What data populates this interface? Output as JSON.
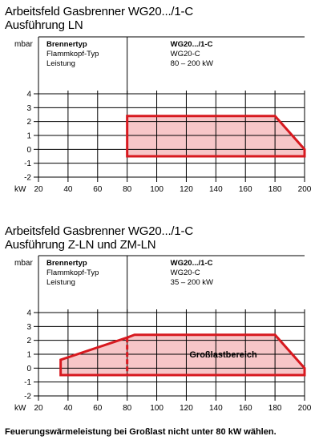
{
  "note": "Feuerungswärmeleistung bei Großlast nicht unter 80 kW wählen.",
  "colors": {
    "border": "#d7191f",
    "fill": "#f7c6c8",
    "grid": "#000000"
  },
  "chart_data": [
    {
      "type": "area",
      "title": "Arbeitsfeld Gasbrenner WG20.../1-C",
      "subtitle": "Ausführung LN",
      "xlabel": "kW",
      "ylabel": "mbar",
      "xlim": [
        20,
        200
      ],
      "ylim": [
        -2,
        4
      ],
      "x_ticks": [
        "20",
        "40",
        "60",
        "80",
        "100",
        "120",
        "140",
        "160",
        "180",
        "200"
      ],
      "y_ticks": [
        "4",
        "3",
        "2",
        "1",
        "0",
        "-1",
        "-2"
      ],
      "grid": true,
      "info": {
        "left": [
          "Brennertyp",
          "Flammkopf-Typ",
          "Leistung"
        ],
        "right": [
          "WG20.../1-C",
          "WG20-C",
          "80 – 200 kW"
        ]
      },
      "field": {
        "points": [
          [
            80,
            2.4
          ],
          [
            180,
            2.4
          ],
          [
            200,
            0.0
          ],
          [
            200,
            -0.5
          ],
          [
            80,
            -0.5
          ]
        ]
      },
      "dashed_segment": null,
      "area_label": ""
    },
    {
      "type": "area",
      "title": "Arbeitsfeld Gasbrenner WG20.../1-C",
      "subtitle": "Ausführung Z-LN und ZM-LN",
      "xlabel": "kW",
      "ylabel": "mbar",
      "xlim": [
        20,
        200
      ],
      "ylim": [
        -2,
        4
      ],
      "x_ticks": [
        "20",
        "40",
        "60",
        "80",
        "100",
        "120",
        "140",
        "160",
        "180",
        "200"
      ],
      "y_ticks": [
        "4",
        "3",
        "2",
        "1",
        "0",
        "-1",
        "-2"
      ],
      "grid": true,
      "info": {
        "left": [
          "Brennertyp",
          "Flammkopf-Typ",
          "Leistung"
        ],
        "right": [
          "WG20.../1-C",
          "WG20-C",
          "35 – 200 kW"
        ]
      },
      "field": {
        "points": [
          [
            35,
            0.6
          ],
          [
            80,
            2.2
          ],
          [
            85,
            2.4
          ],
          [
            180,
            2.4
          ],
          [
            200,
            0.0
          ],
          [
            200,
            -0.5
          ],
          [
            35,
            -0.5
          ]
        ]
      },
      "dashed_segment": [
        [
          80,
          2.2
        ],
        [
          80,
          -0.5
        ]
      ],
      "area_label": "Großlastbereich"
    }
  ]
}
